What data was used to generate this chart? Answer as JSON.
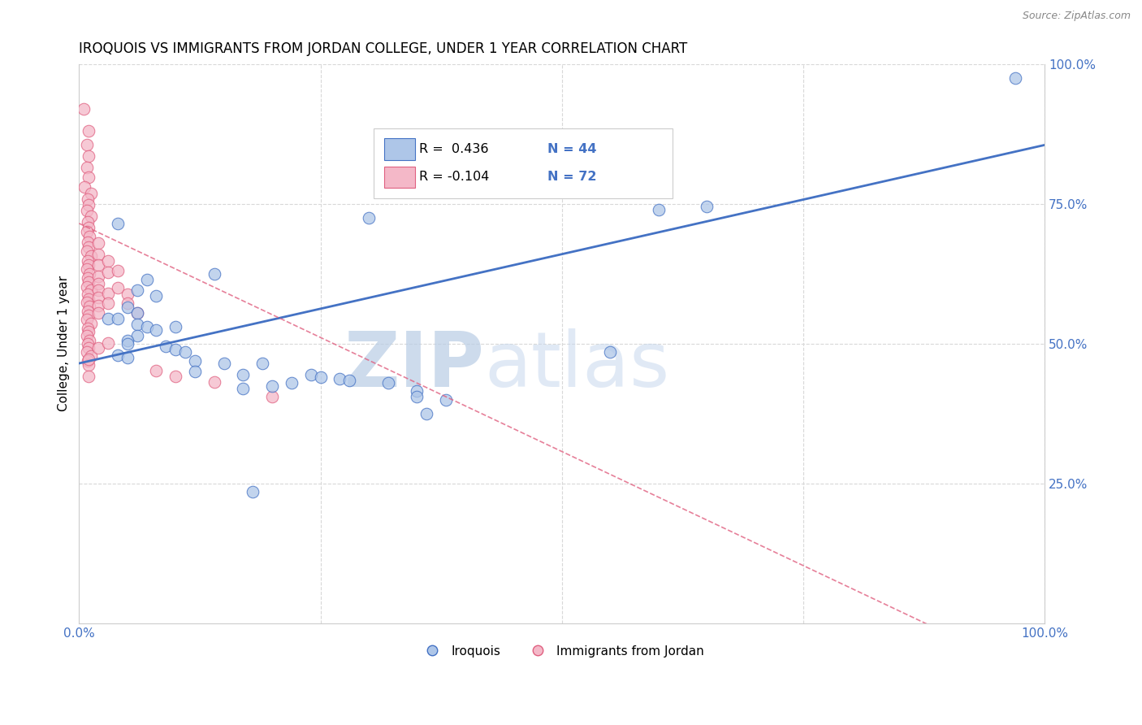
{
  "title": "IROQUOIS VS IMMIGRANTS FROM JORDAN COLLEGE, UNDER 1 YEAR CORRELATION CHART",
  "source": "Source: ZipAtlas.com",
  "ylabel": "College, Under 1 year",
  "legend_r_blue": "R =  0.436",
  "legend_n_blue": "N = 44",
  "legend_r_pink": "R = -0.104",
  "legend_n_pink": "N = 72",
  "blue_color": "#aec6e8",
  "blue_line_color": "#4472c4",
  "pink_color": "#f4b8c8",
  "pink_line_color": "#e06080",
  "blue_scatter": [
    [
      0.97,
      0.975
    ],
    [
      0.3,
      0.725
    ],
    [
      0.04,
      0.715
    ],
    [
      0.14,
      0.625
    ],
    [
      0.07,
      0.615
    ],
    [
      0.06,
      0.595
    ],
    [
      0.08,
      0.585
    ],
    [
      0.05,
      0.565
    ],
    [
      0.06,
      0.555
    ],
    [
      0.03,
      0.545
    ],
    [
      0.04,
      0.545
    ],
    [
      0.06,
      0.535
    ],
    [
      0.07,
      0.53
    ],
    [
      0.1,
      0.53
    ],
    [
      0.08,
      0.525
    ],
    [
      0.06,
      0.515
    ],
    [
      0.05,
      0.505
    ],
    [
      0.05,
      0.5
    ],
    [
      0.09,
      0.495
    ],
    [
      0.1,
      0.49
    ],
    [
      0.11,
      0.485
    ],
    [
      0.04,
      0.48
    ],
    [
      0.05,
      0.475
    ],
    [
      0.12,
      0.47
    ],
    [
      0.15,
      0.465
    ],
    [
      0.19,
      0.465
    ],
    [
      0.12,
      0.45
    ],
    [
      0.17,
      0.445
    ],
    [
      0.24,
      0.445
    ],
    [
      0.25,
      0.44
    ],
    [
      0.27,
      0.438
    ],
    [
      0.28,
      0.435
    ],
    [
      0.22,
      0.43
    ],
    [
      0.2,
      0.425
    ],
    [
      0.17,
      0.42
    ],
    [
      0.32,
      0.43
    ],
    [
      0.35,
      0.415
    ],
    [
      0.35,
      0.405
    ],
    [
      0.38,
      0.4
    ],
    [
      0.55,
      0.485
    ],
    [
      0.6,
      0.74
    ],
    [
      0.65,
      0.745
    ],
    [
      0.18,
      0.235
    ],
    [
      0.36,
      0.375
    ]
  ],
  "pink_scatter": [
    [
      0.005,
      0.92
    ],
    [
      0.01,
      0.88
    ],
    [
      0.008,
      0.855
    ],
    [
      0.01,
      0.835
    ],
    [
      0.008,
      0.815
    ],
    [
      0.01,
      0.798
    ],
    [
      0.006,
      0.78
    ],
    [
      0.012,
      0.768
    ],
    [
      0.009,
      0.758
    ],
    [
      0.01,
      0.748
    ],
    [
      0.008,
      0.738
    ],
    [
      0.012,
      0.728
    ],
    [
      0.009,
      0.718
    ],
    [
      0.01,
      0.708
    ],
    [
      0.008,
      0.7
    ],
    [
      0.011,
      0.692
    ],
    [
      0.009,
      0.682
    ],
    [
      0.01,
      0.672
    ],
    [
      0.008,
      0.665
    ],
    [
      0.012,
      0.656
    ],
    [
      0.009,
      0.648
    ],
    [
      0.01,
      0.64
    ],
    [
      0.008,
      0.634
    ],
    [
      0.011,
      0.625
    ],
    [
      0.009,
      0.618
    ],
    [
      0.01,
      0.61
    ],
    [
      0.008,
      0.602
    ],
    [
      0.012,
      0.595
    ],
    [
      0.009,
      0.588
    ],
    [
      0.01,
      0.58
    ],
    [
      0.008,
      0.574
    ],
    [
      0.011,
      0.566
    ],
    [
      0.009,
      0.558
    ],
    [
      0.01,
      0.55
    ],
    [
      0.008,
      0.544
    ],
    [
      0.012,
      0.536
    ],
    [
      0.009,
      0.528
    ],
    [
      0.01,
      0.522
    ],
    [
      0.008,
      0.514
    ],
    [
      0.011,
      0.506
    ],
    [
      0.009,
      0.5
    ],
    [
      0.01,
      0.492
    ],
    [
      0.008,
      0.485
    ],
    [
      0.012,
      0.478
    ],
    [
      0.009,
      0.47
    ],
    [
      0.01,
      0.462
    ],
    [
      0.02,
      0.68
    ],
    [
      0.02,
      0.66
    ],
    [
      0.02,
      0.64
    ],
    [
      0.02,
      0.62
    ],
    [
      0.02,
      0.608
    ],
    [
      0.02,
      0.595
    ],
    [
      0.02,
      0.582
    ],
    [
      0.02,
      0.568
    ],
    [
      0.02,
      0.555
    ],
    [
      0.03,
      0.648
    ],
    [
      0.03,
      0.628
    ],
    [
      0.03,
      0.59
    ],
    [
      0.03,
      0.572
    ],
    [
      0.04,
      0.63
    ],
    [
      0.04,
      0.6
    ],
    [
      0.05,
      0.588
    ],
    [
      0.05,
      0.572
    ],
    [
      0.06,
      0.555
    ],
    [
      0.01,
      0.472
    ],
    [
      0.01,
      0.442
    ],
    [
      0.02,
      0.492
    ],
    [
      0.03,
      0.502
    ],
    [
      0.08,
      0.452
    ],
    [
      0.1,
      0.442
    ],
    [
      0.14,
      0.432
    ],
    [
      0.2,
      0.405
    ]
  ],
  "xlim": [
    0,
    1
  ],
  "ylim": [
    0,
    1
  ],
  "grid_color": "#d8d8d8",
  "grid_yticks": [
    0.25,
    0.5,
    0.75,
    1.0
  ],
  "watermark_zip": "ZIP",
  "watermark_atlas": "atlas",
  "watermark_color": "#c8d8f0",
  "blue_trend": [
    0.0,
    1.0,
    0.465,
    0.855
  ],
  "pink_trend": [
    0.0,
    1.0,
    0.715,
    -0.1
  ]
}
